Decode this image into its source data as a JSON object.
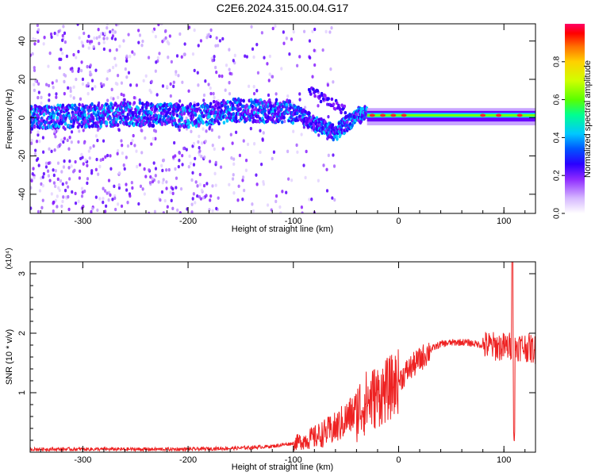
{
  "title": "C2E6.2024.315.00.04.G17",
  "chart_data": [
    {
      "type": "heatmap",
      "title": "C2E6.2024.315.00.04.G17",
      "xlabel": "Height of straight line (km)",
      "ylabel": "Frequency (Hz)",
      "xlim": [
        -350,
        130
      ],
      "ylim": [
        -50,
        49
      ],
      "xticks": [
        -300,
        -200,
        -100,
        0,
        100
      ],
      "yticks": [
        -40,
        -20,
        0,
        20,
        40
      ],
      "colorbar": {
        "label": "Normalized spectral amplitude",
        "range": [
          0,
          1
        ],
        "ticks": [
          0.0,
          0.2,
          0.4,
          0.6,
          0.8
        ],
        "colormap": [
          "#ffffff",
          "#d6b8ff",
          "#8f2bff",
          "#2a00ff",
          "#0055ff",
          "#00c8ff",
          "#00ff90",
          "#5aff00",
          "#d0ff00",
          "#ffd000",
          "#ff7000",
          "#ff0000",
          "#ff0066"
        ]
      },
      "ridge": [
        {
          "x": -350,
          "f": 0
        },
        {
          "x": -300,
          "f": 1
        },
        {
          "x": -250,
          "f": 2
        },
        {
          "x": -200,
          "f": 1
        },
        {
          "x": -150,
          "f": 4
        },
        {
          "x": -100,
          "f": 3
        },
        {
          "x": -80,
          "f": -3
        },
        {
          "x": -60,
          "f": -8
        },
        {
          "x": -40,
          "f": 1
        },
        {
          "x": -30,
          "f": 2
        },
        {
          "x": 0,
          "f": 1
        },
        {
          "x": 50,
          "f": 1
        },
        {
          "x": 100,
          "f": 2
        },
        {
          "x": 130,
          "f": 2
        }
      ]
    },
    {
      "type": "line",
      "xlabel": "Height of straight line (km)",
      "ylabel": "SNR (10 * v/v)",
      "y_multiplier": "(x10⁴)",
      "xlim": [
        -350,
        130
      ],
      "ylim": [
        0,
        3.2
      ],
      "xticks": [
        -300,
        -200,
        -100,
        0,
        100
      ],
      "yticks": [
        1,
        2,
        3
      ],
      "color": "#ee2222",
      "envelope": [
        {
          "x": -350,
          "y": 0.05
        },
        {
          "x": -300,
          "y": 0.05
        },
        {
          "x": -250,
          "y": 0.05
        },
        {
          "x": -200,
          "y": 0.05
        },
        {
          "x": -150,
          "y": 0.07
        },
        {
          "x": -120,
          "y": 0.1
        },
        {
          "x": -100,
          "y": 0.15
        },
        {
          "x": -80,
          "y": 0.25
        },
        {
          "x": -60,
          "y": 0.4
        },
        {
          "x": -50,
          "y": 0.55
        },
        {
          "x": -40,
          "y": 0.7
        },
        {
          "x": -30,
          "y": 0.85
        },
        {
          "x": -20,
          "y": 0.95
        },
        {
          "x": -10,
          "y": 1.05
        },
        {
          "x": 0,
          "y": 1.2
        },
        {
          "x": 10,
          "y": 1.4
        },
        {
          "x": 20,
          "y": 1.55
        },
        {
          "x": 30,
          "y": 1.72
        },
        {
          "x": 40,
          "y": 1.82
        },
        {
          "x": 50,
          "y": 1.84
        },
        {
          "x": 60,
          "y": 1.85
        },
        {
          "x": 70,
          "y": 1.83
        },
        {
          "x": 80,
          "y": 1.8
        },
        {
          "x": 90,
          "y": 1.78
        },
        {
          "x": 100,
          "y": 1.77
        },
        {
          "x": 110,
          "y": 1.78
        },
        {
          "x": 120,
          "y": 1.77
        },
        {
          "x": 130,
          "y": 1.72
        }
      ],
      "spike": {
        "x": 108,
        "y": 3.2
      },
      "dip": {
        "x": 110,
        "y": 0.1
      }
    }
  ]
}
